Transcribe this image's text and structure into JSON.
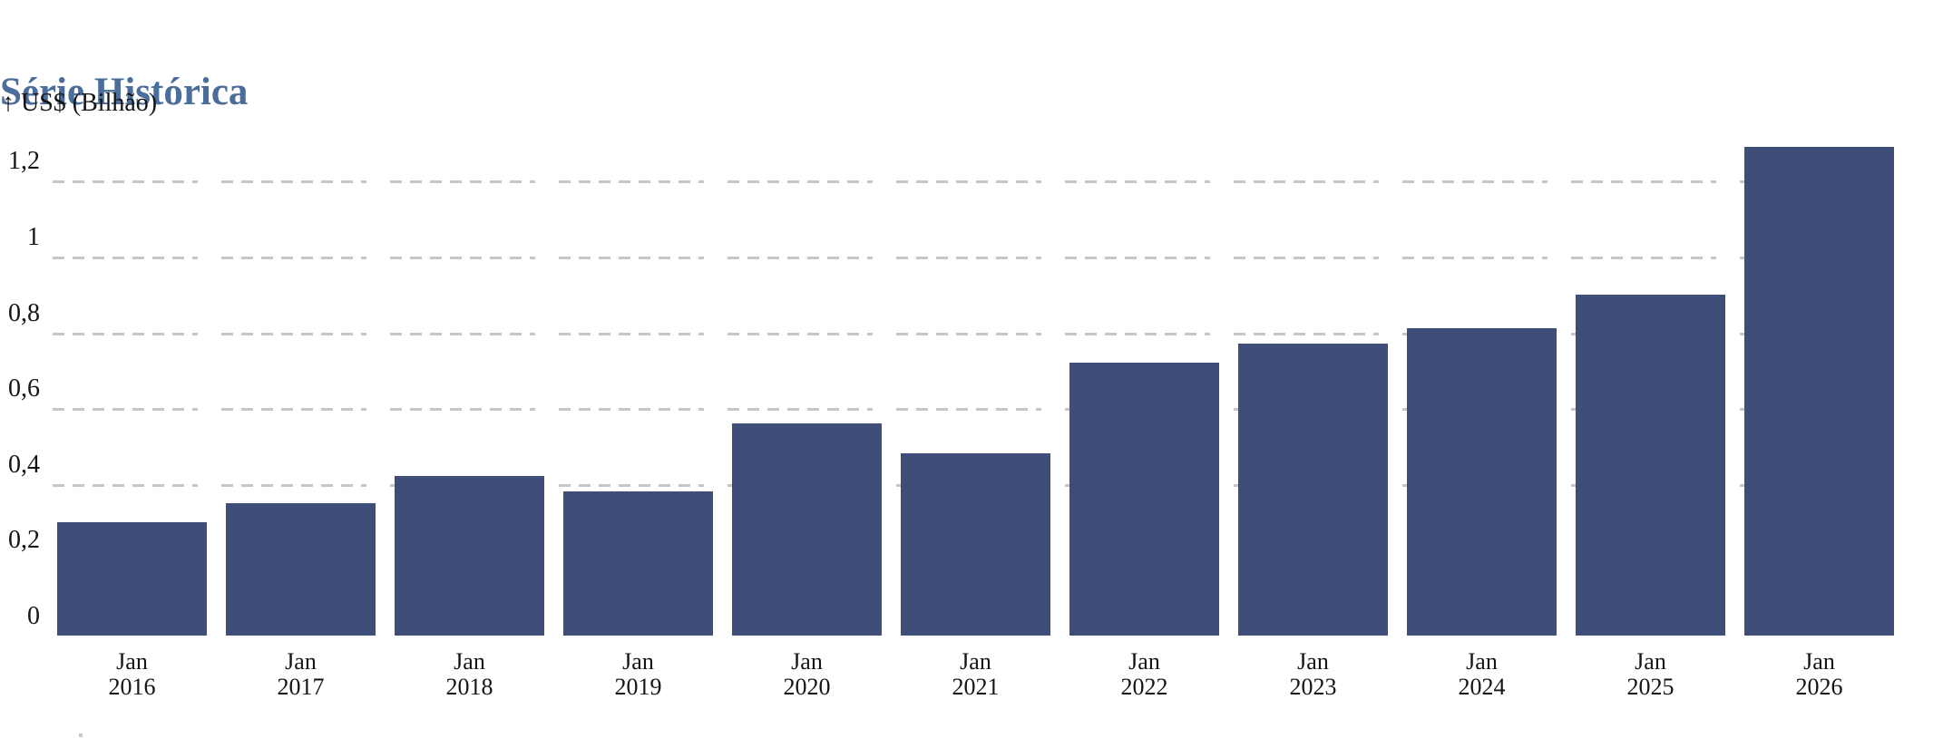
{
  "header": {
    "title": "Série Histórica",
    "unit_label": "↑ US$ (Bilhão)"
  },
  "chart_data": {
    "type": "bar",
    "title": "Série Histórica",
    "ylabel": "US$ (Bilhão)",
    "xlabel": "",
    "legend": "none",
    "grid": "horizontal-dashed, dashes aligned per bar column, hidden behind bars",
    "categories": [
      "Jan 2016",
      "Jan 2017",
      "Jan 2018",
      "Jan 2019",
      "Jan 2020",
      "Jan 2021",
      "Jan 2022",
      "Jan 2023",
      "Jan 2024",
      "Jan 2025",
      "Jan 2026"
    ],
    "x_tick_labels": [
      {
        "line1": "Jan",
        "line2": "2016"
      },
      {
        "line1": "Jan",
        "line2": "2017"
      },
      {
        "line1": "Jan",
        "line2": "2018"
      },
      {
        "line1": "Jan",
        "line2": "2019"
      },
      {
        "line1": "Jan",
        "line2": "2020"
      },
      {
        "line1": "Jan",
        "line2": "2021"
      },
      {
        "line1": "Jan",
        "line2": "2022"
      },
      {
        "line1": "Jan",
        "line2": "2023"
      },
      {
        "line1": "Jan",
        "line2": "2024"
      },
      {
        "line1": "Jan",
        "line2": "2025"
      },
      {
        "line1": "Jan",
        "line2": "2026"
      }
    ],
    "values": [
      0.3,
      0.35,
      0.42,
      0.38,
      0.56,
      0.48,
      0.72,
      0.77,
      0.81,
      0.9,
      1.29
    ],
    "y_ticks": [
      {
        "label": "1,2",
        "value": 1.2,
        "gridline_visible": true
      },
      {
        "label": "1",
        "value": 1.0,
        "gridline_visible": true
      },
      {
        "label": "0,8",
        "value": 0.8,
        "gridline_visible": true
      },
      {
        "label": "0,6",
        "value": 0.6,
        "gridline_visible": true
      },
      {
        "label": "0,4",
        "value": 0.4,
        "gridline_visible": true
      },
      {
        "label": "0,2",
        "value": 0.2,
        "gridline_visible": false
      },
      {
        "label": "0",
        "value": 0.0,
        "gridline_visible": false
      }
    ],
    "ylim": [
      0,
      1.32
    ],
    "colors": {
      "bar": "#3f4e78",
      "grid": "#c6c6c6",
      "title": "#4a6d9b",
      "text": "#151515",
      "background": "#ffffff"
    }
  }
}
